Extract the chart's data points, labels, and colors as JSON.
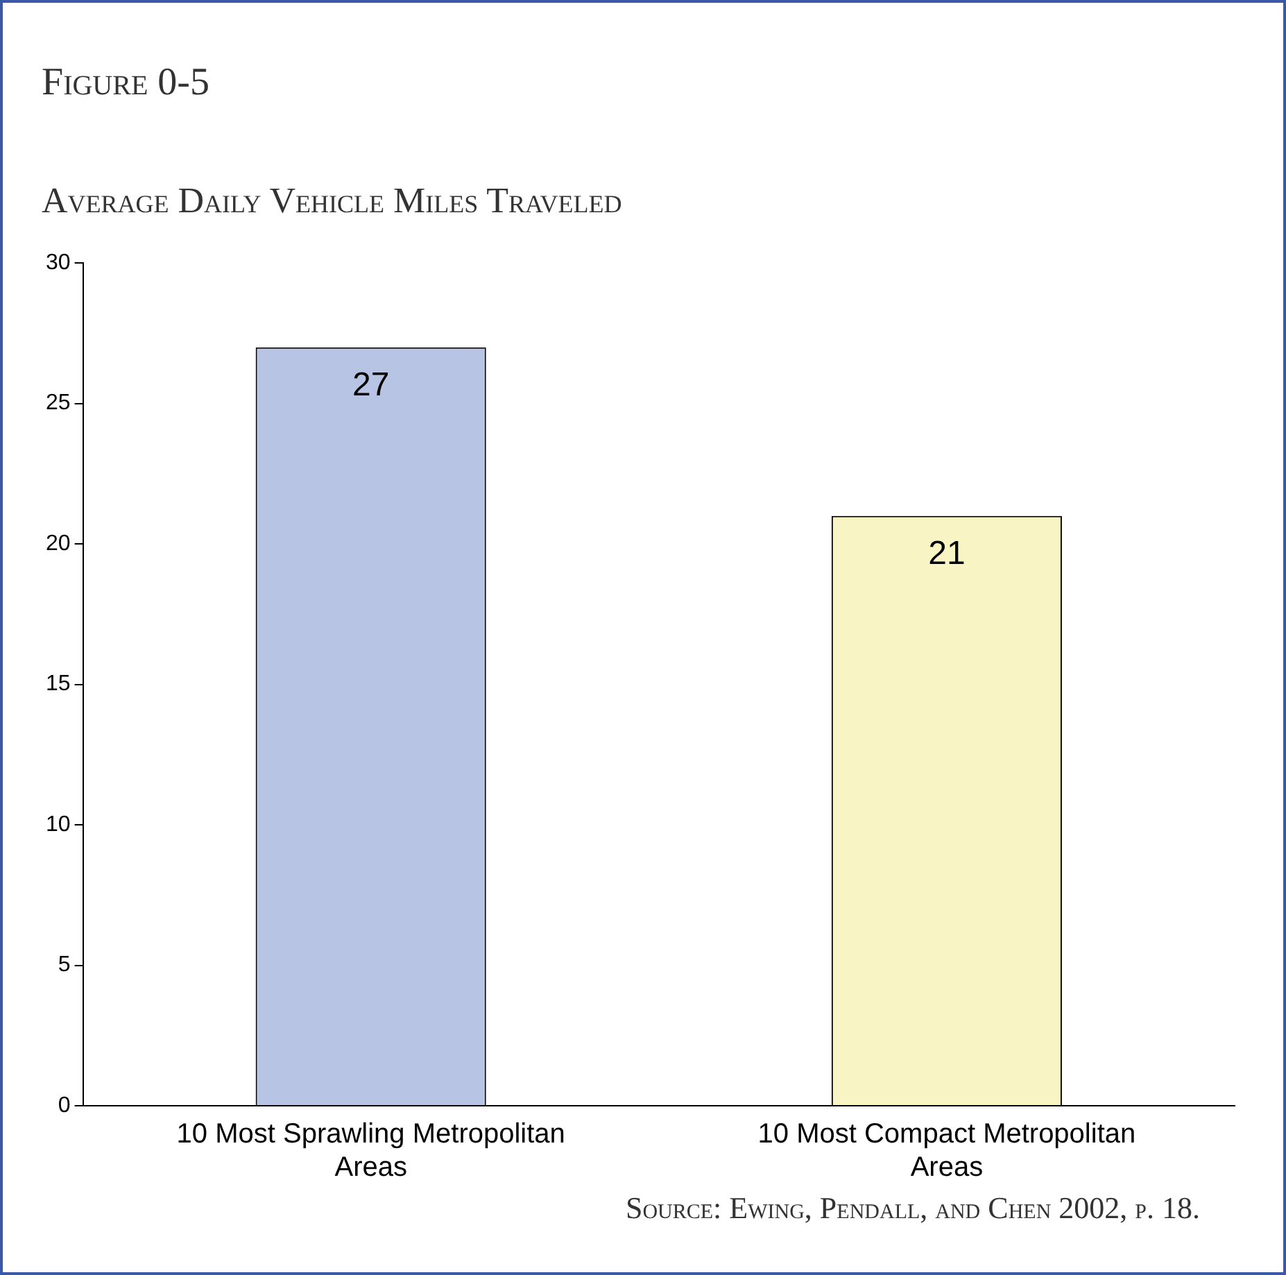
{
  "chart_data": {
    "type": "bar",
    "title": "Figure 0-5",
    "subtitle": "Average Daily Vehicle Miles Traveled",
    "categories": [
      "10 Most Sprawling Metropolitan Areas",
      "10 Most Compact Metropolitan Areas"
    ],
    "values": [
      27,
      21
    ],
    "colors": [
      "#b8c4e4",
      "#f8f4c4"
    ],
    "ylim": [
      0,
      30
    ],
    "yticks": [
      0,
      5,
      10,
      15,
      20,
      25,
      30
    ],
    "grid": false,
    "legend": false,
    "data_labels": true,
    "annotations": [
      "Source: Ewing, Pendall, and Chen 2002, p. 18."
    ]
  }
}
